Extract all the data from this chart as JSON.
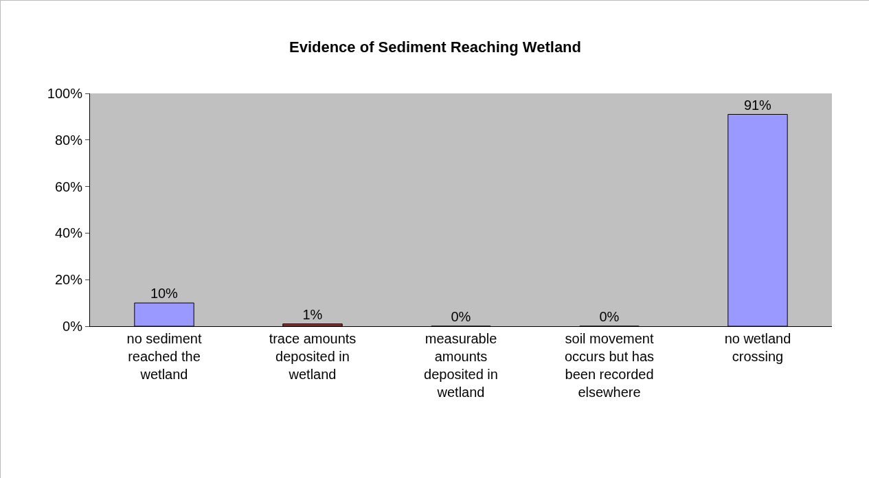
{
  "chart_data": {
    "type": "bar",
    "title": "Evidence of Sediment Reaching Wetland",
    "categories": [
      "no sediment reached the wetland",
      "trace amounts deposited in wetland",
      "measurable amounts deposited in wetland",
      "soil movement occurs but has been recorded elsewhere",
      "no wetland crossing"
    ],
    "values": [
      10,
      1,
      0,
      0,
      91
    ],
    "colors": [
      "#9999ff",
      "#993333",
      "#9999ff",
      "#9999ff",
      "#9999ff"
    ],
    "value_labels": [
      "10%",
      "1%",
      "0%",
      "0%",
      "91%"
    ],
    "ylim": [
      0,
      100
    ],
    "yticks": [
      {
        "value": 0,
        "label": "0%"
      },
      {
        "value": 20,
        "label": "20%"
      },
      {
        "value": 40,
        "label": "40%"
      },
      {
        "value": 60,
        "label": "60%"
      },
      {
        "value": 80,
        "label": "80%"
      },
      {
        "value": 100,
        "label": "100%"
      }
    ],
    "grid": false
  }
}
